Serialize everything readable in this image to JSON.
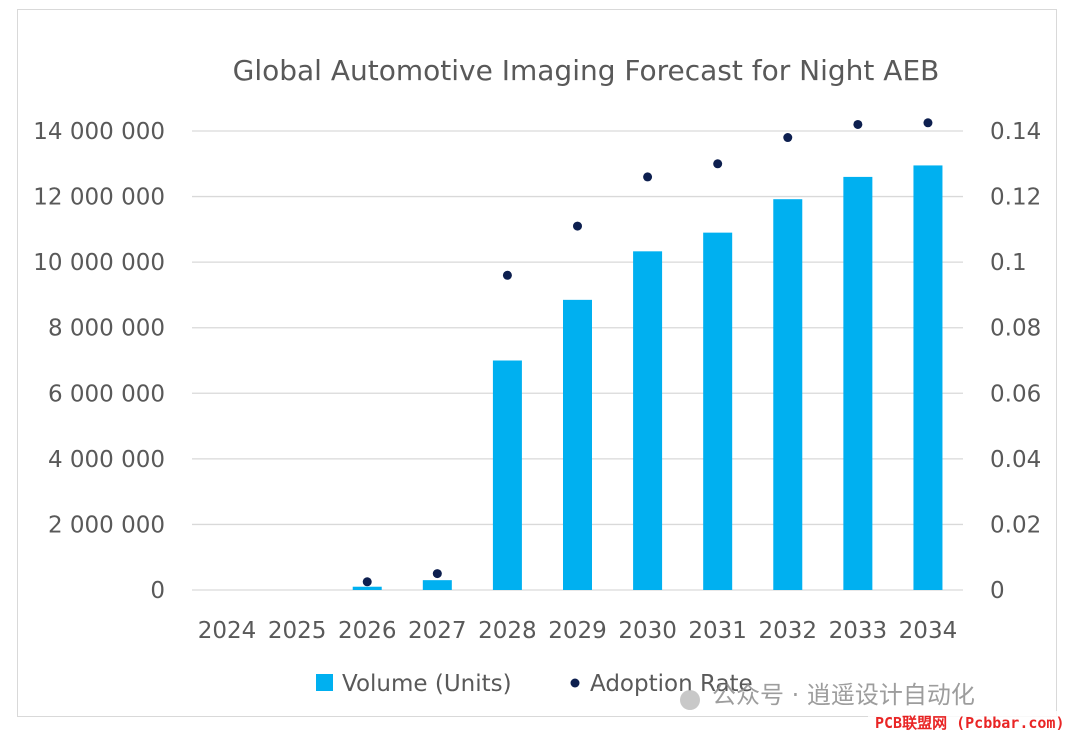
{
  "chart_data": {
    "type": "bar",
    "title": "Global Automotive Imaging Forecast for Night AEB",
    "categories": [
      "2024",
      "2025",
      "2026",
      "2027",
      "2028",
      "2029",
      "2030",
      "2031",
      "2032",
      "2033",
      "2034"
    ],
    "series": [
      {
        "name": "Volume (Units)",
        "type": "bar",
        "axis": "left",
        "color": "#00b0f0",
        "values": [
          0,
          0,
          100000,
          300000,
          7000000,
          8850000,
          10330000,
          10900000,
          11920000,
          12600000,
          12950000
        ]
      },
      {
        "name": "Adoption Rate",
        "type": "scatter",
        "axis": "right",
        "color": "#0d1f4f",
        "values": [
          0,
          0,
          0.0025,
          0.005,
          0.096,
          0.111,
          0.126,
          0.13,
          0.138,
          0.142,
          0.1425
        ]
      }
    ],
    "y_left": {
      "ylim": [
        0,
        14000000
      ],
      "ticks": [
        0,
        2000000,
        4000000,
        6000000,
        8000000,
        10000000,
        12000000,
        14000000
      ],
      "tick_labels": [
        "0",
        "2 000 000",
        "4 000 000",
        "6 000 000",
        "8 000 000",
        "10 000 000",
        "12 000 000",
        "14 000 000"
      ]
    },
    "y_right": {
      "ylim": [
        0,
        0.14
      ],
      "ticks": [
        0,
        0.02,
        0.04,
        0.06,
        0.08,
        0.1,
        0.12,
        0.14
      ],
      "tick_labels": [
        "0",
        "0.02",
        "0.04",
        "0.06",
        "0.08",
        "0.1",
        "0.12",
        "0.14"
      ]
    },
    "grid": true,
    "legend_position": "bottom"
  },
  "watermark": {
    "text": "公众号 · 逍遥设计自动化",
    "site": "PCB联盟网 (Pcbbar.com)"
  }
}
